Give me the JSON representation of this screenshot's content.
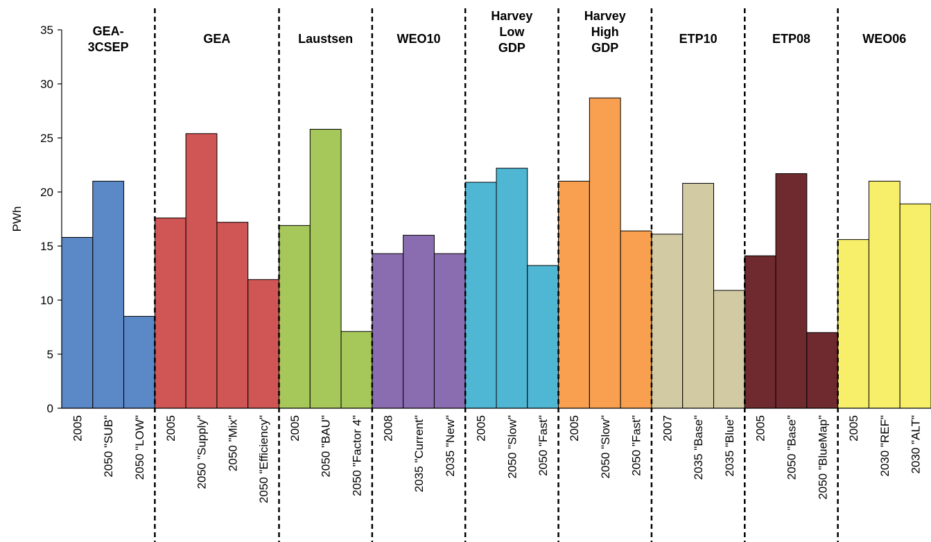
{
  "chart_data": {
    "type": "bar",
    "title": "",
    "xlabel": "",
    "ylabel": "PWh",
    "ylim": [
      0,
      35
    ],
    "yticks": [
      0,
      5,
      10,
      15,
      20,
      25,
      30,
      35
    ],
    "grid": false,
    "legend": "none",
    "groups": [
      {
        "name": "GEA-\n3CSEP",
        "color": "#5B88C6",
        "bars": [
          {
            "label": "2005",
            "value": 15.8
          },
          {
            "label": "2050 \"SUB\"",
            "value": 21.0
          },
          {
            "label": "2050 \"LOW\"",
            "value": 8.5
          }
        ]
      },
      {
        "name": "GEA",
        "color": "#D05555",
        "bars": [
          {
            "label": "2005",
            "value": 17.6
          },
          {
            "label": "2050 \"Supply\"",
            "value": 25.4
          },
          {
            "label": "2050 \"Mix\"",
            "value": 17.2
          },
          {
            "label": "2050 \"Efficiency\"",
            "value": 11.9
          }
        ]
      },
      {
        "name": "Laustsen",
        "color": "#A6C75A",
        "bars": [
          {
            "label": "2005",
            "value": 16.9
          },
          {
            "label": "2050 \"BAU\"",
            "value": 25.8
          },
          {
            "label": "2050 \"Factor 4\"",
            "value": 7.1
          }
        ]
      },
      {
        "name": "WEO10",
        "color": "#8A6DB0",
        "bars": [
          {
            "label": "2008",
            "value": 14.3
          },
          {
            "label": "2035 \"Current\"",
            "value": 16.0
          },
          {
            "label": "2035 \"New\"",
            "value": 14.3
          }
        ]
      },
      {
        "name": "Harvey\nLow\nGDP",
        "color": "#4FB7D4",
        "bars": [
          {
            "label": "2005",
            "value": 20.9
          },
          {
            "label": "2050 \"Slow\"",
            "value": 22.2
          },
          {
            "label": "2050 \"Fast\"",
            "value": 13.2
          }
        ]
      },
      {
        "name": "Harvey\nHigh\nGDP",
        "color": "#F8A050",
        "bars": [
          {
            "label": "2005",
            "value": 21.0
          },
          {
            "label": "2050 \"Slow\"",
            "value": 28.7
          },
          {
            "label": "2050 \"Fast\"",
            "value": 16.4
          }
        ]
      },
      {
        "name": "ETP10",
        "color": "#D2CAA2",
        "bars": [
          {
            "label": "2007",
            "value": 16.1
          },
          {
            "label": "2035 \"Base\"",
            "value": 20.8
          },
          {
            "label": "2035 \"Blue\"",
            "value": 10.9
          }
        ]
      },
      {
        "name": "ETP08",
        "color": "#6E2A2E",
        "bars": [
          {
            "label": "2005",
            "value": 14.1
          },
          {
            "label": "2050 \"Base\"",
            "value": 21.7
          },
          {
            "label": "2050 \"BlueMap\"",
            "value": 7.0
          }
        ]
      },
      {
        "name": "WEO06",
        "color": "#F7EE6A",
        "bars": [
          {
            "label": "2005",
            "value": 15.6
          },
          {
            "label": "2030 \"REF\"",
            "value": 21.0
          },
          {
            "label": "2030 \"ALT\"",
            "value": 18.9
          }
        ]
      }
    ]
  }
}
